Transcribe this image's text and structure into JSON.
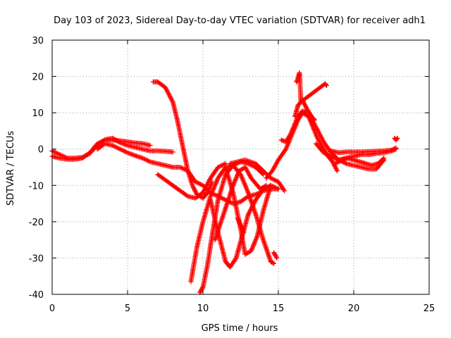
{
  "chart_data": {
    "type": "scatter",
    "title": "Day 103 of 2023, Sidereal Day-to-day VTEC variation (SDTVAR) for receiver adh1",
    "xlabel": "GPS time / hours",
    "ylabel": "SDTVAR / TECUs",
    "xlim": [
      0,
      25
    ],
    "ylim": [
      -40,
      30
    ],
    "xticks": [
      0,
      5,
      10,
      15,
      20,
      25
    ],
    "yticks": [
      -40,
      -30,
      -20,
      -10,
      0,
      10,
      20,
      30
    ],
    "grid": true,
    "marker": "+",
    "series_color": "#ff0000",
    "series": [
      {
        "x": [
          0,
          0.5,
          1,
          1.5,
          2,
          2.5,
          3,
          3.5,
          4,
          4.5,
          5,
          5.5,
          6,
          6.5,
          7,
          7.5,
          8
        ],
        "y": [
          -0.5,
          -1.5,
          -2.5,
          -2.5,
          -2.3,
          -1.2,
          1,
          2.6,
          3,
          1.8,
          1,
          0.5,
          0,
          -0.5,
          -0.5,
          -0.6,
          -0.8
        ]
      },
      {
        "x": [
          0,
          0.5,
          1,
          1.5,
          2,
          2.5,
          3,
          3.5,
          4,
          4.5,
          5,
          5.5,
          6,
          6.5
        ],
        "y": [
          -2,
          -2.5,
          -2.8,
          -2.8,
          -2.5,
          -1,
          1.5,
          2.5,
          2.5,
          2.3,
          2,
          1.7,
          1.5,
          1
        ]
      },
      {
        "x": [
          3,
          3.5,
          4,
          4.5,
          5,
          5.5,
          6,
          6.5,
          7,
          7.5,
          8,
          8.5,
          9,
          9.5,
          10,
          10.5,
          11,
          11.5,
          12,
          12.5,
          13,
          13.5,
          14,
          14.5,
          15
        ],
        "y": [
          0,
          1.5,
          1,
          0,
          -1,
          -1.8,
          -2.5,
          -3.5,
          -4,
          -4.5,
          -5,
          -5,
          -6,
          -9,
          -10,
          -12,
          -13,
          -14,
          -15,
          -14.5,
          -13,
          -12.5,
          -11.5,
          -11,
          -11
        ]
      },
      {
        "x": [
          6.7,
          7,
          7.5,
          8,
          8.3,
          8.6,
          9,
          9.3,
          9.6,
          10,
          10.3,
          10.6
        ],
        "y": [
          18.5,
          18.5,
          17,
          13,
          8,
          2,
          -6,
          -10,
          -12.5,
          -13.5,
          -12,
          -9
        ]
      },
      {
        "x": [
          7,
          7.5,
          8,
          8.5,
          9,
          9.5,
          10,
          10.5,
          11,
          11.5
        ],
        "y": [
          -7,
          -8.5,
          -10,
          -11.5,
          -13,
          -13.5,
          -12,
          -8,
          -5,
          -4
        ]
      },
      {
        "x": [
          9.2,
          9.6,
          10,
          10.5,
          11,
          11.5,
          12,
          12.5,
          13,
          13.5,
          14,
          14.5,
          14.7
        ],
        "y": [
          -36.5,
          -27,
          -20,
          -13,
          -8,
          -5,
          -4.5,
          -7,
          -12,
          -18,
          -25,
          -31,
          -31.5
        ]
      },
      {
        "x": [
          9.8,
          10,
          10.3,
          10.6,
          11,
          11.5,
          12,
          12.5,
          13,
          13.5,
          14
        ],
        "y": [
          -39.5,
          -38,
          -32,
          -24,
          -14,
          -7,
          -4.5,
          -3.5,
          -4,
          -5,
          -7
        ]
      },
      {
        "x": [
          10.8,
          11.2,
          11.6,
          12,
          12.4,
          12.8,
          13.2,
          13.8,
          14.2
        ],
        "y": [
          -25,
          -20,
          -15,
          -10,
          -6,
          -5,
          -8,
          -11,
          -10
        ]
      },
      {
        "x": [
          10.5,
          11,
          11.5,
          11.8,
          12.2,
          12.6,
          13,
          13.5,
          14,
          14.5,
          15
        ],
        "y": [
          -14,
          -23,
          -31,
          -32.5,
          -30,
          -24,
          -18,
          -14,
          -11,
          -10,
          -11
        ]
      },
      {
        "x": [
          11.5,
          12,
          12.5,
          12.8,
          13.2,
          13.6,
          14,
          14.5
        ],
        "y": [
          -5,
          -12,
          -22,
          -29,
          -28,
          -24,
          -17,
          -10
        ]
      },
      {
        "x": [
          11.8,
          12.3,
          12.8,
          13.5,
          14,
          14.5,
          15,
          15.4
        ],
        "y": [
          -4,
          -3.5,
          -3,
          -4,
          -6,
          -8,
          -9,
          -11.5
        ]
      },
      {
        "x": [
          14.2,
          14.6,
          15,
          15.5,
          16,
          16.3,
          16.6,
          17,
          17.3,
          17.6,
          18,
          18.3,
          18.6,
          18.9
        ],
        "y": [
          -8,
          -6,
          -3,
          0,
          5,
          8,
          10,
          9,
          6,
          3,
          0,
          -2,
          -3.5,
          -6
        ]
      },
      {
        "x": [
          15.2,
          15.5,
          15.8,
          16,
          16.3,
          16.6,
          17,
          17.5,
          18,
          18.5,
          19,
          19.5,
          20,
          20.5,
          21,
          21.5,
          22
        ],
        "y": [
          2.5,
          2,
          4,
          6,
          9,
          10.5,
          10,
          6,
          2,
          -1,
          -3,
          -4,
          -4.5,
          -5,
          -5.5,
          -5.5,
          -3
        ]
      },
      {
        "x": [
          17.5,
          18,
          18.5,
          19,
          19.5,
          20,
          20.5,
          21,
          21.5,
          22,
          22.5,
          22.8
        ],
        "y": [
          1.5,
          -1,
          -2,
          -3,
          -2.5,
          -2,
          -1.5,
          -1.5,
          -1.2,
          -1,
          -0.5,
          0
        ]
      },
      {
        "x": [
          18.5,
          19,
          19.5,
          20,
          20.5,
          21,
          21.5,
          22,
          22.5,
          22.8
        ],
        "y": [
          -0.5,
          -1,
          -0.8,
          -0.8,
          -0.8,
          -0.7,
          -0.6,
          -0.5,
          -0.3,
          0.3
        ]
      },
      {
        "x": [
          18.8,
          19.2,
          19.6,
          20,
          20.4,
          20.8,
          21.2,
          21.6,
          22
        ],
        "y": [
          -4,
          -3,
          -2.5,
          -3,
          -3.5,
          -4,
          -4.5,
          -4,
          -2.5
        ]
      },
      {
        "x": [
          22.7,
          22.8,
          22.9
        ],
        "y": [
          3,
          2.5,
          3
        ]
      },
      {
        "x": [
          16.2,
          16.3,
          16.4,
          16.5,
          18.1,
          18.2
        ],
        "y": [
          18.5,
          19.5,
          21,
          13,
          18,
          17.5
        ]
      },
      {
        "x": [
          16.1,
          16.3,
          16.6,
          16.9,
          17.2,
          17.4
        ],
        "y": [
          9,
          12,
          13.5,
          11,
          9,
          8
        ]
      },
      {
        "x": [
          12.3,
          12.5,
          12.7
        ],
        "y": [
          -19,
          -21,
          -23
        ]
      },
      {
        "x": [
          14.7,
          14.9
        ],
        "y": [
          -28.5,
          -30
        ]
      }
    ]
  }
}
